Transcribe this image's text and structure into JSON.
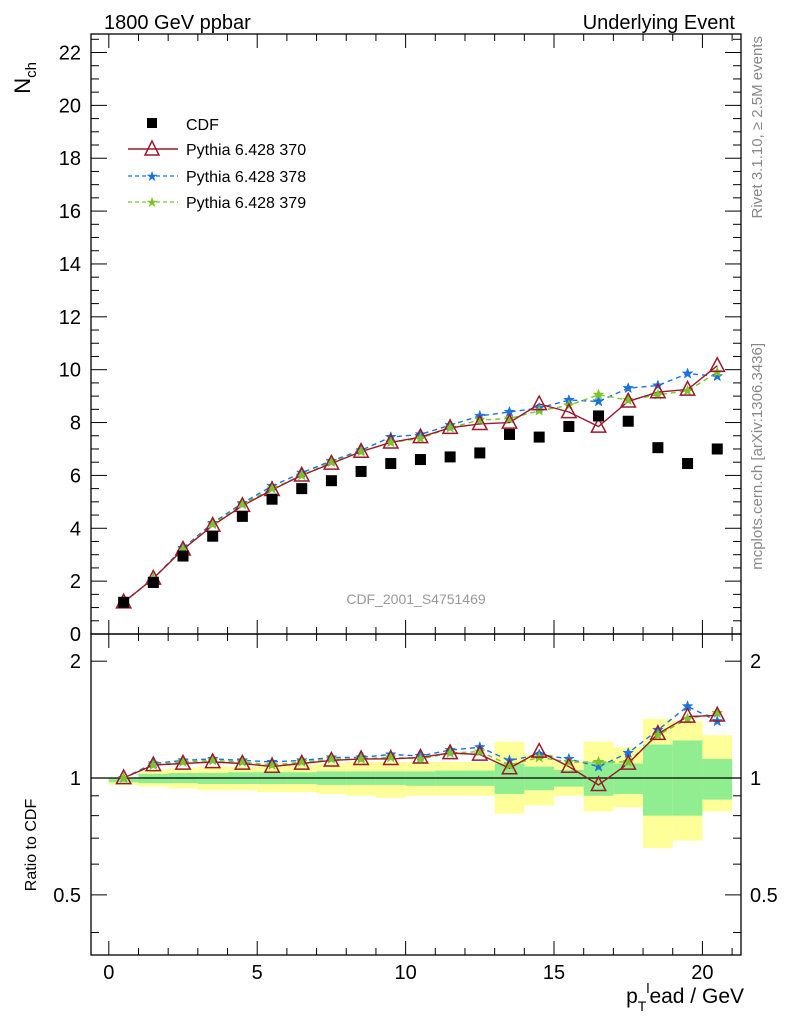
{
  "header": {
    "left": "1800 GeV ppbar",
    "right": "Underlying Event"
  },
  "side_labels": {
    "rivet": "Rivet 3.1.10, ≥ 2.5M events",
    "mcplots": "mcplots.cern.ch [arXiv:1306.3436]"
  },
  "watermark": "CDF_2001_S4751469",
  "chart_data": {
    "type": "scatter",
    "ylabel": "N",
    "ylabel_sub": "ch",
    "ratio_ylabel": "Ratio to CDF",
    "xlabel_main": "p",
    "xlabel_sub": "T",
    "xlabel_sup": "l",
    "xlabel_rest": "ead / GeV",
    "xlim": [
      -0.6,
      21.3
    ],
    "ylim": [
      0,
      22.7
    ],
    "ratio_ylim": [
      0.35,
      2.35
    ],
    "ratio_log_scale": true,
    "x_ticks": [
      "0",
      "5",
      "10",
      "15",
      "20"
    ],
    "x_tick_values": [
      0,
      5,
      10,
      15,
      20
    ],
    "y_ticks": [
      "0",
      "2",
      "4",
      "6",
      "8",
      "10",
      "12",
      "14",
      "16",
      "18",
      "20",
      "22"
    ],
    "y_tick_values": [
      0,
      2,
      4,
      6,
      8,
      10,
      12,
      14,
      16,
      18,
      20,
      22
    ],
    "ratio_ticks": [
      "0.5",
      "1",
      "2"
    ],
    "ratio_tick_values": [
      0.5,
      1,
      2
    ],
    "legend_position": "top-left",
    "x": [
      0.5,
      1.5,
      2.5,
      3.5,
      4.5,
      5.5,
      6.5,
      7.5,
      8.5,
      9.5,
      10.5,
      11.5,
      12.5,
      13.5,
      14.5,
      15.5,
      16.5,
      17.5,
      18.5,
      19.5,
      20.5
    ],
    "series": [
      {
        "name": "CDF",
        "color": "#000000",
        "marker": "square",
        "values": [
          1.2,
          1.95,
          2.95,
          3.7,
          4.45,
          5.1,
          5.5,
          5.8,
          6.15,
          6.45,
          6.6,
          6.7,
          6.85,
          7.55,
          7.45,
          7.85,
          8.25,
          8.05,
          7.05,
          6.45,
          7.0
        ]
      },
      {
        "name": "Pythia 6.428 370",
        "color": "#9a1a2e",
        "marker": "triangle-open",
        "line": "solid",
        "values": [
          1.2,
          2.1,
          3.2,
          4.1,
          4.85,
          5.45,
          6.0,
          6.45,
          6.9,
          7.25,
          7.45,
          7.8,
          7.95,
          8.0,
          8.7,
          8.4,
          7.85,
          8.8,
          9.15,
          9.25,
          10.15
        ],
        "ratio": [
          1.0,
          1.08,
          1.09,
          1.1,
          1.09,
          1.07,
          1.09,
          1.11,
          1.12,
          1.12,
          1.13,
          1.16,
          1.15,
          1.06,
          1.17,
          1.07,
          0.96,
          1.09,
          1.3,
          1.44,
          1.45
        ]
      },
      {
        "name": "Pythia 6.428 378",
        "color": "#1a73e0",
        "marker": "star",
        "line": "dashed",
        "values": [
          1.2,
          2.1,
          3.25,
          4.2,
          4.95,
          5.6,
          6.1,
          6.55,
          6.95,
          7.45,
          7.55,
          7.9,
          8.25,
          8.4,
          8.55,
          8.85,
          8.8,
          9.3,
          9.4,
          9.85,
          9.75
        ],
        "ratio": [
          1.0,
          1.09,
          1.11,
          1.12,
          1.11,
          1.1,
          1.11,
          1.13,
          1.13,
          1.15,
          1.14,
          1.18,
          1.2,
          1.11,
          1.15,
          1.12,
          1.07,
          1.16,
          1.33,
          1.53,
          1.4
        ]
      },
      {
        "name": "Pythia 6.428 379",
        "color": "#7cc42a",
        "marker": "star",
        "line": "dashed",
        "values": [
          1.2,
          2.1,
          3.2,
          4.15,
          4.9,
          5.5,
          6.0,
          6.5,
          6.9,
          7.25,
          7.4,
          7.8,
          8.1,
          8.15,
          8.45,
          8.65,
          9.05,
          8.85,
          9.05,
          9.2,
          9.9
        ],
        "ratio": [
          1.0,
          1.08,
          1.1,
          1.11,
          1.1,
          1.08,
          1.1,
          1.12,
          1.12,
          1.13,
          1.12,
          1.16,
          1.17,
          1.08,
          1.13,
          1.1,
          1.1,
          1.1,
          1.29,
          1.42,
          1.47
        ]
      }
    ],
    "ratio_bands": {
      "green": {
        "color": "#90ee90",
        "low": [
          0.975,
          0.97,
          0.97,
          0.965,
          0.965,
          0.965,
          0.965,
          0.96,
          0.96,
          0.96,
          0.955,
          0.955,
          0.955,
          0.91,
          0.93,
          0.95,
          0.9,
          0.91,
          0.8,
          0.8,
          0.88
        ],
        "high": [
          1.0,
          1.025,
          1.03,
          1.03,
          1.035,
          1.035,
          1.035,
          1.04,
          1.04,
          1.04,
          1.04,
          1.045,
          1.045,
          1.09,
          1.07,
          1.05,
          1.1,
          1.09,
          1.22,
          1.25,
          1.12
        ]
      },
      "yellow": {
        "color": "#ffff99",
        "low": [
          0.96,
          0.95,
          0.94,
          0.93,
          0.93,
          0.92,
          0.92,
          0.91,
          0.9,
          0.89,
          0.9,
          0.9,
          0.9,
          0.81,
          0.85,
          0.9,
          0.82,
          0.84,
          0.66,
          0.69,
          0.82
        ],
        "high": [
          1.0,
          1.05,
          1.06,
          1.07,
          1.07,
          1.08,
          1.08,
          1.09,
          1.1,
          1.1,
          1.1,
          1.1,
          1.1,
          1.24,
          1.15,
          1.1,
          1.24,
          1.2,
          1.42,
          1.4,
          1.29
        ]
      }
    }
  }
}
